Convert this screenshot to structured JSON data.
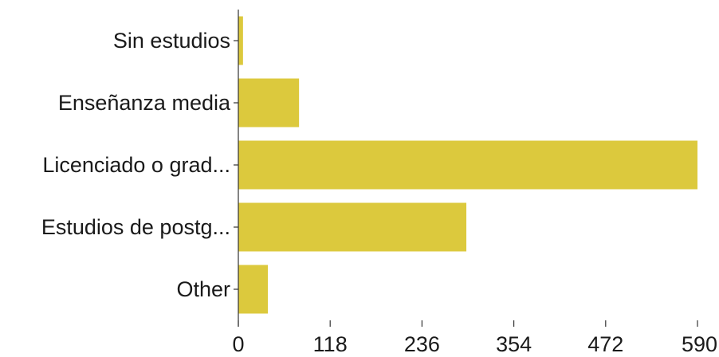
{
  "chart_data": {
    "type": "bar",
    "orientation": "horizontal",
    "categories": [
      "Sin estudios",
      "Enseñanza media",
      "Licenciado o grad...",
      "Estudios de postg...",
      "Other"
    ],
    "values": [
      6,
      78,
      590,
      293,
      38
    ],
    "xlim": [
      0,
      590
    ],
    "xticks": [
      "0",
      "118",
      "236",
      "354",
      "472",
      "590"
    ],
    "bar_color": "#dcc93d",
    "grid": false,
    "legend": "none",
    "title": "",
    "xlabel": "",
    "ylabel": ""
  }
}
